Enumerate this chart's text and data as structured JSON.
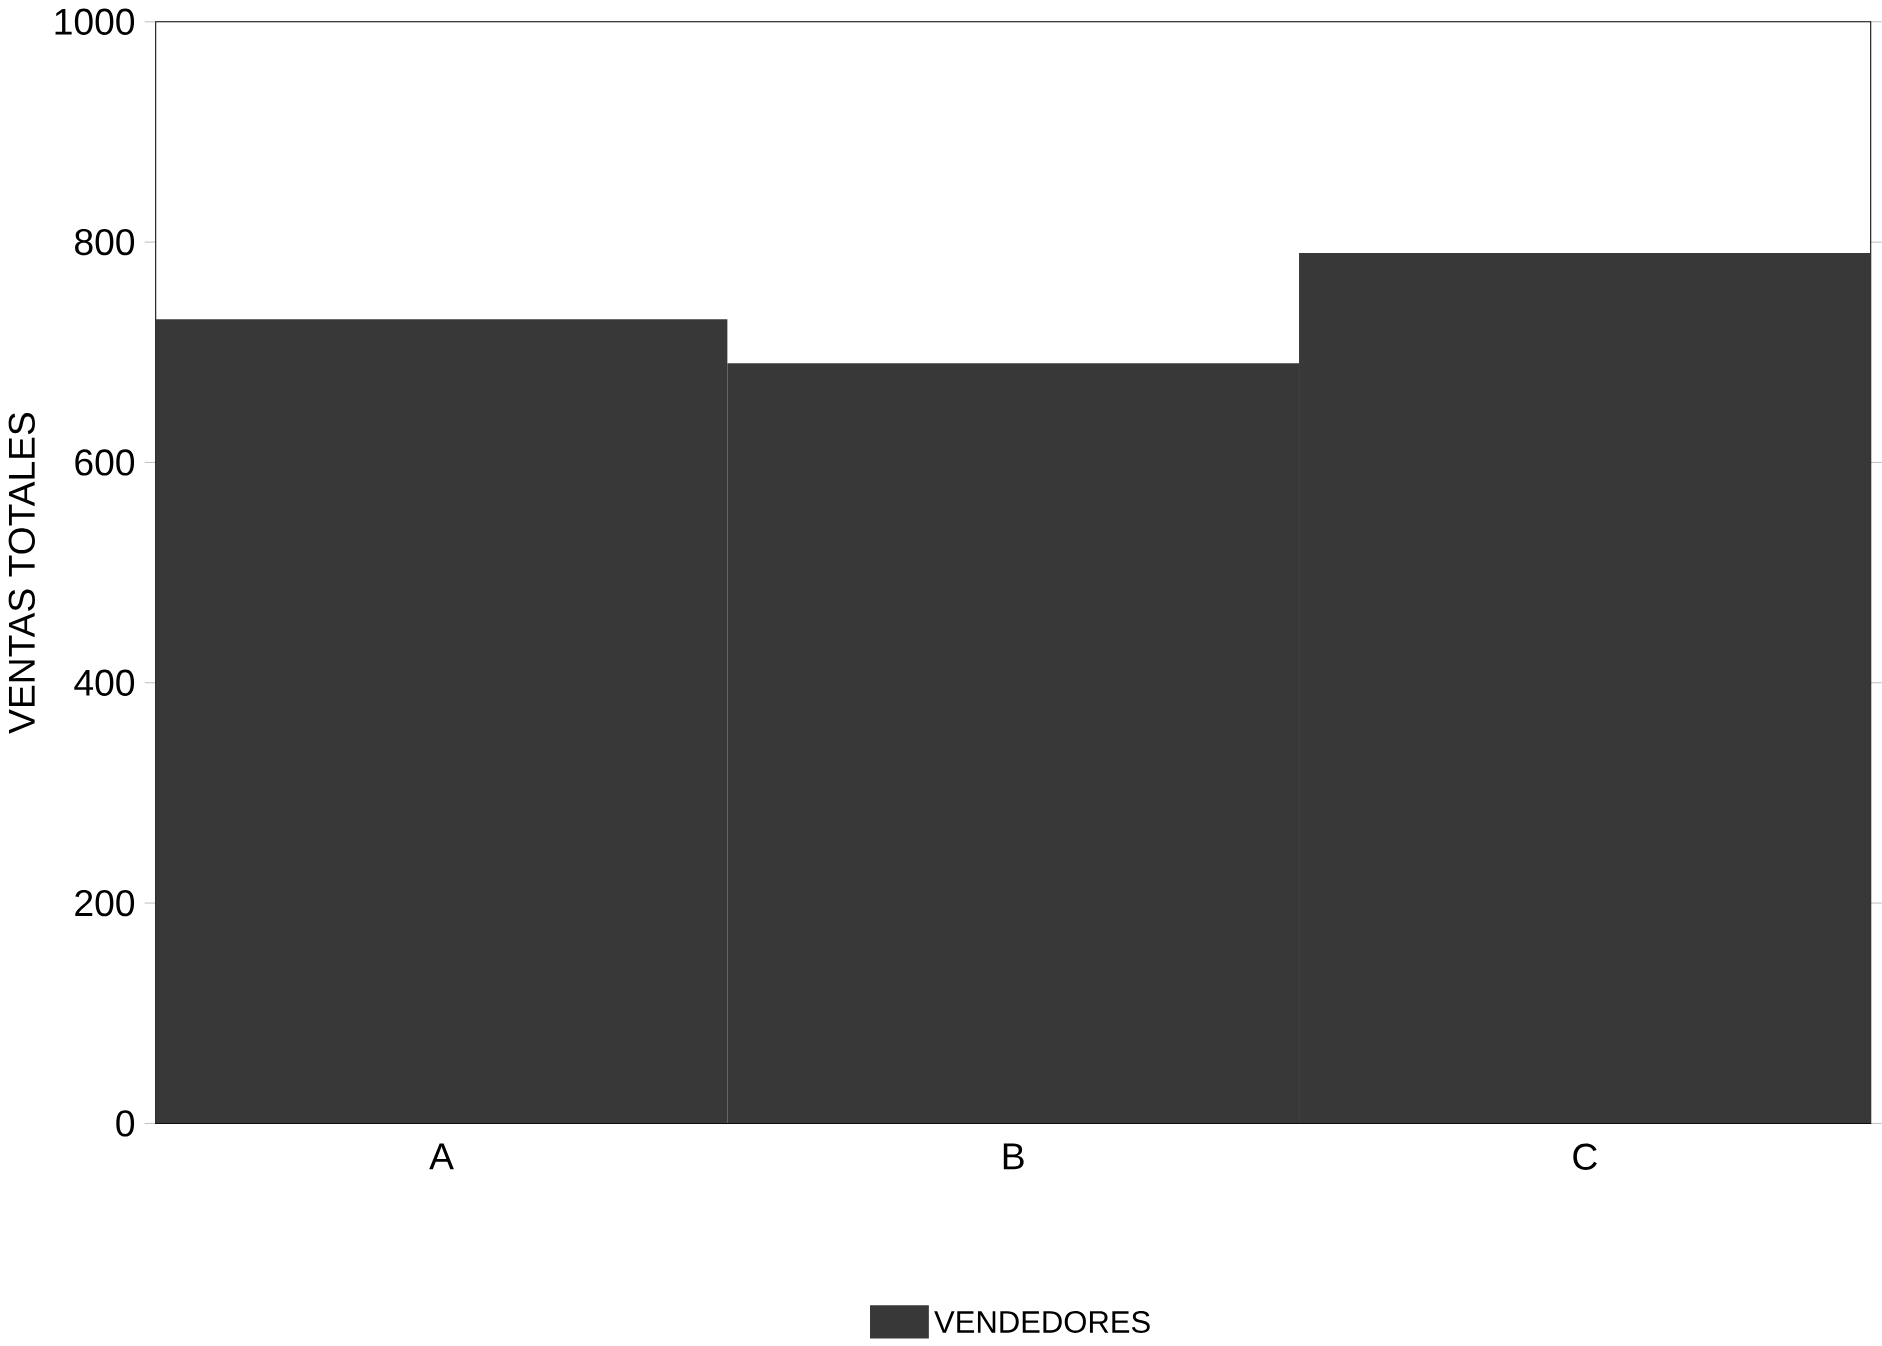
{
  "chart_data": {
    "type": "bar",
    "ylabel": "VENTAS TOTALES",
    "categories": [
      "A",
      "B",
      "C"
    ],
    "series": [
      {
        "name": "VENDEDORES",
        "color": "#383838",
        "values": [
          730,
          690,
          790
        ]
      }
    ],
    "ylim": [
      0,
      1000
    ],
    "yticks": [
      0,
      200,
      400,
      600,
      800,
      1000
    ],
    "grid": false,
    "legend": "bottom"
  }
}
